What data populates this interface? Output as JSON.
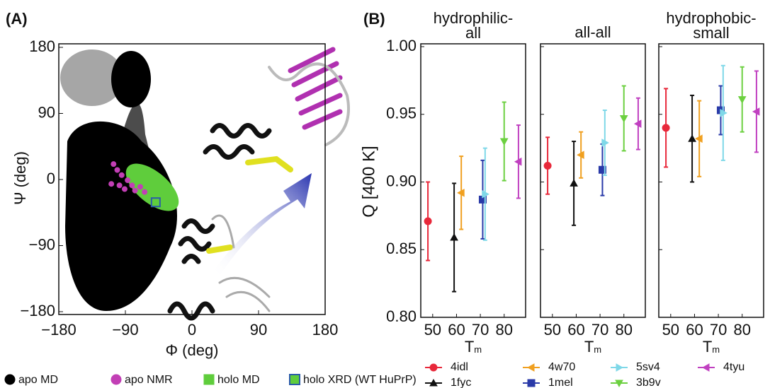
{
  "chart_data": [
    {
      "type": "scatter",
      "label": "(A)",
      "xlabel": "Φ (deg)",
      "ylabel": "Ψ (deg)",
      "xlim": [
        -180,
        180
      ],
      "ylim": [
        -180,
        180
      ],
      "xticks": [
        {
          "value": -180,
          "label": "−180"
        },
        {
          "value": -90,
          "label": "−90"
        },
        0,
        90,
        180
      ],
      "yticks": [
        {
          "value": -180,
          "label": "−180"
        },
        {
          "value": -90,
          "label": "−90"
        },
        0,
        90,
        180
      ],
      "series": [
        {
          "name": "apo MD",
          "color": "#000000",
          "marker": "circle"
        },
        {
          "name": "apo NMR",
          "color": "#c23fb5",
          "marker": "circle",
          "x": [
            -106,
            -101,
            -95,
            -87,
            -81,
            -77,
            -70,
            -91,
            -64,
            -98,
            -109
          ],
          "values": [
            21,
            13,
            6,
            -1,
            -8,
            -15,
            -10,
            -13,
            -17,
            -8,
            -6
          ]
        },
        {
          "name": "holo MD",
          "color": "#5fcd3c",
          "marker": "square"
        },
        {
          "name": "holo XRD (WT HuPrP)",
          "color": "#5fcd3c",
          "edgecolor": "#2b5ca8",
          "marker": "square",
          "x": [
            -49
          ],
          "values": [
            -31
          ]
        }
      ]
    },
    {
      "type": "errorbar",
      "label": "(B)",
      "ylabel": "Q [400 K]",
      "xlabel": "T",
      "xlabel_sub": "m",
      "ylim": [
        0.8,
        1.0
      ],
      "yticks": [
        {
          "value": 0.8,
          "label": "0.80"
        },
        0.85,
        {
          "value": 0.9,
          "label": "0.90"
        },
        0.95,
        {
          "value": 1.0,
          "label": "1.00"
        }
      ],
      "xlim": [
        45,
        89
      ],
      "xticks": [
        50,
        60,
        70,
        80
      ],
      "panels": [
        [
          "hydrophilic-",
          "all"
        ],
        [
          "all-all"
        ],
        [
          "hydrophobic-",
          "small"
        ]
      ],
      "series": [
        {
          "name": "4idl",
          "color": "#e8283a",
          "marker": "circle",
          "x": 48,
          "values": [
            0.871,
            0.912,
            0.94
          ],
          "errors": [
            0.029,
            0.021,
            0.029
          ]
        },
        {
          "name": "1fyc",
          "color": "#111111",
          "marker": "triangle-up",
          "x": 59,
          "values": [
            0.859,
            0.899,
            0.932
          ],
          "errors": [
            0.04,
            0.031,
            0.032
          ]
        },
        {
          "name": "4w70",
          "color": "#f0a020",
          "marker": "triangle-left",
          "x": 62,
          "values": [
            0.892,
            0.92,
            0.932
          ],
          "errors": [
            0.027,
            0.017,
            0.028
          ]
        },
        {
          "name": "1mel",
          "color": "#2a3aa8",
          "marker": "square",
          "x": 71,
          "values": [
            0.887,
            0.909,
            0.953
          ],
          "errors": [
            0.029,
            0.019,
            0.018
          ]
        },
        {
          "name": "5sv4",
          "color": "#7fd8e8",
          "marker": "triangle-right",
          "x": 72,
          "values": [
            0.891,
            0.929,
            0.951
          ],
          "errors": [
            0.034,
            0.024,
            0.035
          ]
        },
        {
          "name": "3b9v",
          "color": "#6cd040",
          "marker": "triangle-down",
          "x": 80,
          "values": [
            0.93,
            0.947,
            0.961
          ],
          "errors": [
            0.029,
            0.024,
            0.024
          ]
        },
        {
          "name": "4tyu",
          "color": "#c040c0",
          "marker": "triangle-left",
          "x": 86,
          "values": [
            0.915,
            0.943,
            0.952
          ],
          "errors": [
            0.027,
            0.019,
            0.03
          ]
        }
      ]
    }
  ]
}
